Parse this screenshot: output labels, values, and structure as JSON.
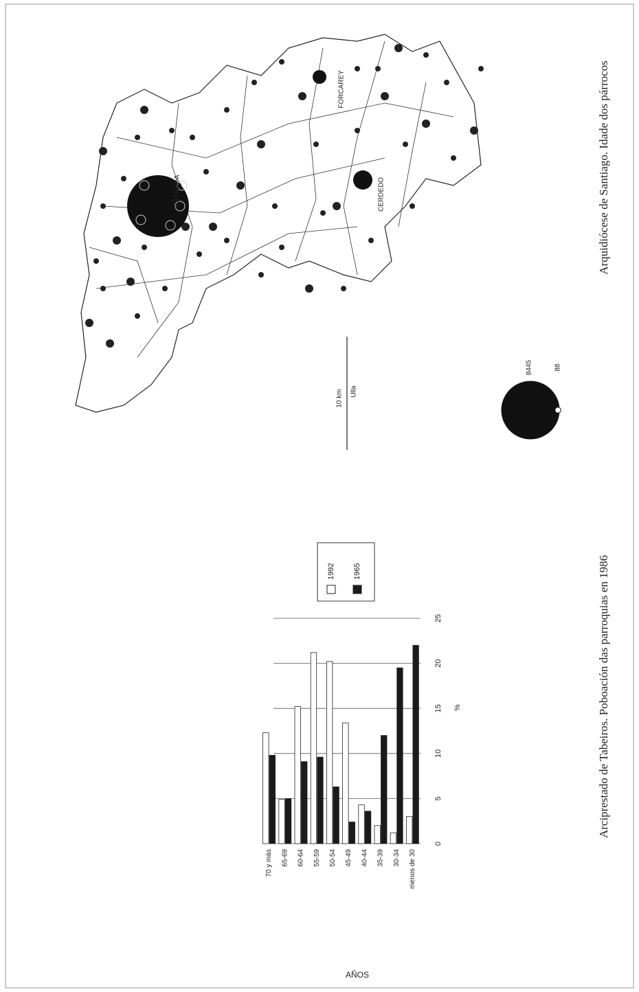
{
  "chart_data": {
    "type": "bar",
    "orientation": "horizontal",
    "caption": "Arquidiócese de Santiago. Idade dos párrocos",
    "categories": [
      "70 y más",
      "65-69",
      "60-64",
      "55-59",
      "50-54",
      "45-49",
      "40-44",
      "35-39",
      "30-34",
      "menos de 30"
    ],
    "series": [
      {
        "name": "1992",
        "color": "#ffffff",
        "values": [
          12.3,
          4.9,
          15.2,
          21.2,
          20.2,
          13.4,
          4.3,
          2.0,
          1.2,
          3.0
        ]
      },
      {
        "name": "1965",
        "color": "#1a1a1a",
        "values": [
          9.8,
          5.0,
          9.1,
          9.6,
          6.3,
          2.4,
          3.6,
          12.0,
          19.5,
          22.0
        ]
      }
    ],
    "xlabel": "%",
    "ylabel": "AÑOS",
    "xlim": [
      0,
      25
    ],
    "xticks": [
      0,
      5,
      10,
      15,
      20,
      25
    ],
    "grid": true
  },
  "map": {
    "caption": "Arciprestado de Tabeiros. Poboación das parroquias en 1986",
    "places": [
      "ESTRADA",
      "FORCAREY",
      "CERDEDO",
      "Ulla"
    ],
    "scale": "10 km",
    "legend_values": [
      8445,
      88
    ]
  }
}
